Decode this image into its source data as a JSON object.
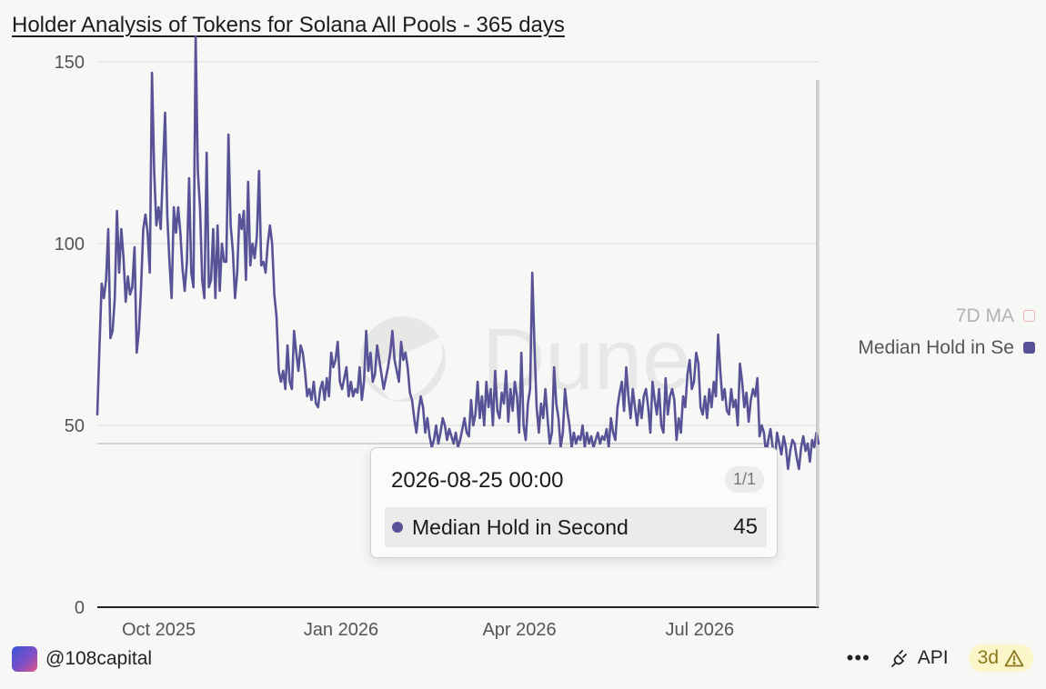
{
  "title": "Holder Analysis of Tokens for Solana All Pools - 365 days",
  "watermark": "Dune",
  "legend": {
    "items": [
      {
        "label": "7D MA",
        "state": "hidden",
        "color": "#f0b4b4"
      },
      {
        "label": "Median Hold in Se",
        "state": "visible",
        "color": "#575396"
      }
    ]
  },
  "tooltip": {
    "date": "2026-08-25 00:00",
    "page": "1/1",
    "series_name": "Median Hold in Second",
    "value": "45"
  },
  "footer": {
    "user": "@108capital",
    "more": "•••",
    "api_label": "API",
    "age_badge": "3d"
  },
  "chart_data": {
    "type": "line",
    "title": "Holder Analysis of Tokens for Solana All Pools - 365 days",
    "xlabel": "",
    "ylabel": "",
    "x_start": "2025-08-31",
    "x_end": "2026-08-30",
    "x_ticks": [
      {
        "label": "Oct 2025",
        "date": "2025-10-01"
      },
      {
        "label": "Jan 2026",
        "date": "2026-01-01"
      },
      {
        "label": "Apr 2026",
        "date": "2026-04-01"
      },
      {
        "label": "Jul 2026",
        "date": "2026-07-01"
      }
    ],
    "ylim": [
      0,
      160
    ],
    "y_ticks": [
      0,
      50,
      100,
      150
    ],
    "grid": true,
    "reference_line": 45,
    "legend_position": "right",
    "series": [
      {
        "name": "Median Hold in Second",
        "color": "#575396",
        "values": [
          53,
          72,
          89,
          85,
          90,
          104,
          74,
          76,
          85,
          109,
          92,
          104,
          96,
          84,
          91,
          86,
          88,
          99,
          70,
          76,
          88,
          104,
          108,
          103,
          92,
          147,
          120,
          105,
          110,
          104,
          120,
          136,
          108,
          95,
          85,
          110,
          103,
          110,
          103,
          93,
          87,
          95,
          118,
          92,
          88,
          157,
          120,
          110,
          90,
          85,
          125,
          88,
          90,
          104,
          85,
          105,
          87,
          100,
          95,
          95,
          130,
          105,
          98,
          85,
          92,
          108,
          104,
          109,
          90,
          117,
          94,
          100,
          96,
          102,
          120,
          94,
          95,
          92,
          100,
          105,
          100,
          86,
          80,
          65,
          62,
          65,
          60,
          72,
          62,
          60,
          76,
          70,
          65,
          72,
          70,
          65,
          58,
          60,
          57,
          62,
          56,
          55,
          60,
          62,
          57,
          63,
          58,
          70,
          66,
          68,
          73,
          62,
          60,
          63,
          66,
          58,
          62,
          58,
          60,
          59,
          66,
          57,
          62,
          76,
          65,
          70,
          62,
          64,
          72,
          68,
          64,
          60,
          63,
          66,
          70,
          76,
          68,
          65,
          62,
          73,
          68,
          70,
          66,
          59,
          57,
          52,
          48,
          54,
          58,
          55,
          48,
          52,
          47,
          44,
          46,
          50,
          45,
          48,
          52,
          50,
          46,
          49,
          47,
          45,
          48,
          44,
          46,
          49,
          52,
          48,
          47,
          57,
          50,
          53,
          62,
          52,
          58,
          50,
          62,
          55,
          60,
          50,
          65,
          54,
          52,
          59,
          56,
          65,
          51,
          60,
          54,
          62,
          58,
          48,
          70,
          50,
          46,
          56,
          60,
          92,
          72,
          55,
          48,
          56,
          52,
          60,
          52,
          45,
          48,
          66,
          56,
          52,
          44,
          48,
          60,
          54,
          50,
          44,
          48,
          45,
          47,
          46,
          50,
          44,
          48,
          45,
          47,
          44,
          46,
          48,
          45,
          47,
          46,
          49,
          44,
          52,
          48,
          46,
          55,
          59,
          62,
          54,
          66,
          58,
          52,
          60,
          55,
          50,
          57,
          52,
          58,
          60,
          55,
          48,
          62,
          57,
          53,
          60,
          50,
          48,
          63,
          53,
          58,
          60,
          57,
          46,
          52,
          48,
          58,
          55,
          64,
          68,
          60,
          62,
          70,
          67,
          55,
          53,
          58,
          52,
          60,
          55,
          62,
          58,
          75,
          65,
          57,
          60,
          54,
          53,
          60,
          55,
          57,
          50,
          67,
          62,
          55,
          59,
          51,
          57,
          60,
          58,
          63,
          47,
          50,
          48,
          42,
          46,
          49,
          44,
          40,
          48,
          45,
          42,
          47,
          44,
          38,
          43,
          46,
          45,
          41,
          38,
          44,
          47,
          43,
          45,
          40,
          46,
          44,
          48,
          45
        ]
      }
    ]
  }
}
